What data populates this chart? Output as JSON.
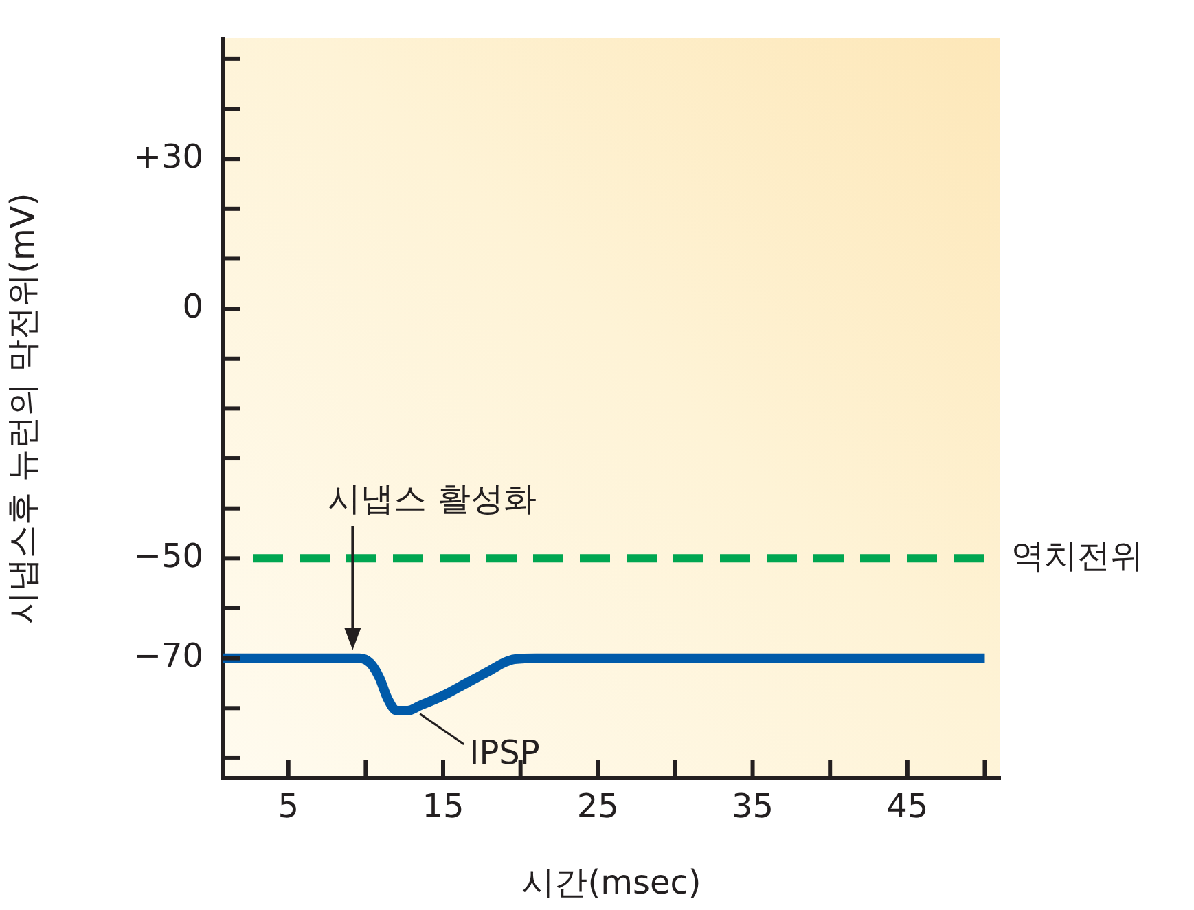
{
  "chart_data": {
    "type": "line",
    "xlabel": "시간(msec)",
    "ylabel": "시냅스후 뉴런의 막전위(mV)",
    "x": [
      0.75,
      9.6,
      10.3,
      10.9,
      11.4,
      12,
      12.7,
      13.5,
      15,
      16.5,
      18,
      19,
      19.6,
      21,
      50
    ],
    "series": [
      {
        "name": "IPSP",
        "color": "#005aa9",
        "values": [
          -70,
          -70,
          -71,
          -74,
          -78,
          -80.5,
          -80.5,
          -79.5,
          -77.5,
          -75,
          -72.5,
          -70.8,
          -70.2,
          -70,
          -70
        ]
      }
    ],
    "xlim": [
      0.75,
      51
    ],
    "ylim": [
      -94,
      54
    ],
    "xticks": [
      5,
      {
        "value": 10,
        "label": null
      },
      15,
      {
        "value": 20,
        "label": null
      },
      25,
      {
        "value": 30,
        "label": null
      },
      35,
      {
        "value": 40,
        "label": null
      },
      45,
      {
        "value": 50,
        "label": null
      }
    ],
    "yticks": [
      {
        "value": -90,
        "label": null
      },
      {
        "value": -80,
        "label": null
      },
      {
        "value": -70,
        "label": "−70"
      },
      {
        "value": -60,
        "label": null
      },
      {
        "value": -50,
        "label": "−50"
      },
      {
        "value": -40,
        "label": null
      },
      {
        "value": -30,
        "label": null
      },
      {
        "value": -20,
        "label": null
      },
      {
        "value": -10,
        "label": null
      },
      0,
      {
        "value": 10,
        "label": null
      },
      {
        "value": 20,
        "label": null
      },
      {
        "value": 30,
        "label": "+30"
      },
      {
        "value": 40,
        "label": null
      },
      {
        "value": 50,
        "label": null
      }
    ],
    "ref_lines": [
      {
        "axis": "y",
        "value": -50,
        "label": "역치전위",
        "color": "#00a651",
        "line_style": "dashed"
      }
    ],
    "annotations": [
      "시냅스 활성화"
    ],
    "grid": false,
    "legend": false,
    "marker": "none",
    "line_style": "solid"
  }
}
